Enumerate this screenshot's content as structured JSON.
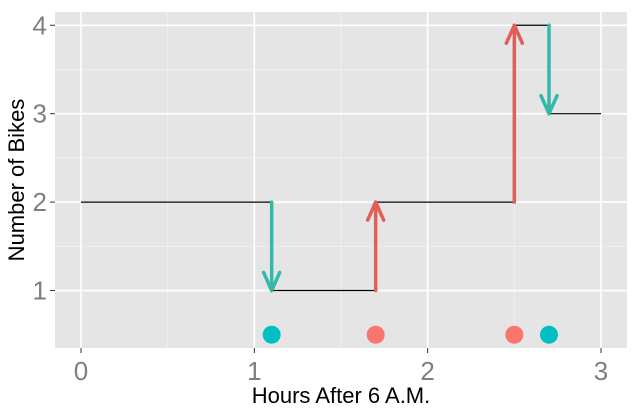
{
  "chart_data": {
    "type": "line",
    "subtype": "step-function-with-event-arrows",
    "title": "",
    "xlabel": "Hours After 6 A.M.",
    "ylabel": "Number of Bikes",
    "xlim": [
      -0.15,
      3.15
    ],
    "ylim": [
      0.35,
      4.15
    ],
    "x_ticks": [
      0,
      1,
      2,
      3
    ],
    "x_tick_labels": [
      "0",
      "1",
      "2",
      "3"
    ],
    "y_ticks": [
      1,
      2,
      3,
      4
    ],
    "y_tick_labels": [
      "1",
      "2",
      "3",
      "4"
    ],
    "grid": true,
    "background": "#e5e5e5",
    "step_series": {
      "x": [
        0,
        1.1,
        1.7,
        2.5,
        2.7,
        3.0
      ],
      "y": [
        2,
        1,
        2,
        4,
        3,
        3
      ],
      "color": "#000000"
    },
    "events": [
      {
        "x": 1.1,
        "type": "departure",
        "from": 2,
        "to": 1
      },
      {
        "x": 1.7,
        "type": "arrival",
        "from": 1,
        "to": 2
      },
      {
        "x": 2.5,
        "type": "arrival",
        "from": 2,
        "to": 4
      },
      {
        "x": 2.7,
        "type": "departure",
        "from": 4,
        "to": 3
      }
    ],
    "event_dot_y": 0.5,
    "colors": {
      "arrival": "#e06057",
      "departure": "#34b8a9",
      "arrival_dot": "#f8766d",
      "departure_dot": "#00bfc4"
    }
  }
}
